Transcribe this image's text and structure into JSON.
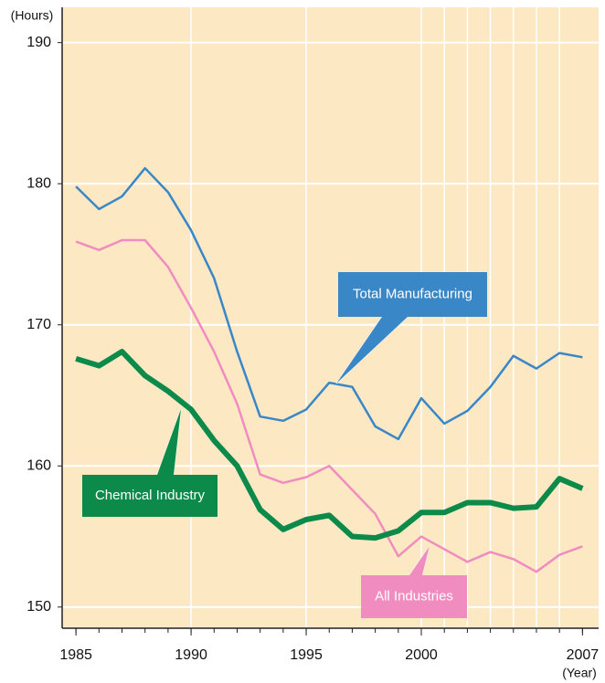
{
  "chart_data": {
    "type": "line",
    "y_axis_label": "(Hours)",
    "x_axis_label": "(Year)",
    "x": [
      1985,
      1986,
      1987,
      1988,
      1989,
      1990,
      1991,
      1992,
      1993,
      1994,
      1995,
      1996,
      1997,
      1998,
      1999,
      2000,
      2001,
      2002,
      2003,
      2004,
      2005,
      2006,
      2007
    ],
    "series": [
      {
        "name": "Total Manufacturing",
        "color": "#3a87c8",
        "width": 2.5,
        "values": [
          179.8,
          178.2,
          179.1,
          181.1,
          179.4,
          176.7,
          173.3,
          168.1,
          163.5,
          163.2,
          164.0,
          165.9,
          165.6,
          162.8,
          161.9,
          164.8,
          163.0,
          163.9,
          165.6,
          167.8,
          166.9,
          168.0,
          167.7
        ]
      },
      {
        "name": "All Industries",
        "color": "#f08cc0",
        "width": 2.5,
        "values": [
          175.9,
          175.3,
          176.0,
          176.0,
          174.1,
          171.2,
          168.1,
          164.4,
          159.4,
          158.8,
          159.2,
          160.0,
          158.3,
          156.6,
          153.6,
          155.0,
          154.1,
          153.2,
          153.9,
          153.4,
          152.5,
          153.7,
          154.3
        ]
      },
      {
        "name": "Chemical Industry",
        "color": "#0b8a4a",
        "width": 6,
        "values": [
          167.6,
          167.1,
          168.1,
          166.4,
          165.3,
          164.0,
          161.8,
          160.0,
          156.9,
          155.5,
          156.2,
          156.5,
          155.0,
          154.9,
          155.4,
          156.7,
          156.7,
          157.4,
          157.4,
          157.0,
          157.1,
          159.1,
          158.4
        ]
      }
    ],
    "xlim": [
      1984.4,
      2007.7
    ],
    "ylim": [
      148.5,
      192.5
    ],
    "xticks": [
      1985,
      1990,
      1995,
      2000,
      2007
    ],
    "xminorticks": [
      1985,
      1986,
      1987,
      1988,
      1989,
      1990,
      1991,
      1992,
      1993,
      1994,
      1995,
      1996,
      1997,
      1998,
      1999,
      2000,
      2001,
      2002,
      2003,
      2004,
      2005,
      2006,
      2007
    ],
    "xgrid": [
      1990,
      1995,
      2000,
      2001,
      2002,
      2003,
      2004,
      2005,
      2006
    ],
    "yticks": [
      150,
      160,
      170,
      180,
      190
    ],
    "grid": true,
    "background": "#fde8c4"
  }
}
